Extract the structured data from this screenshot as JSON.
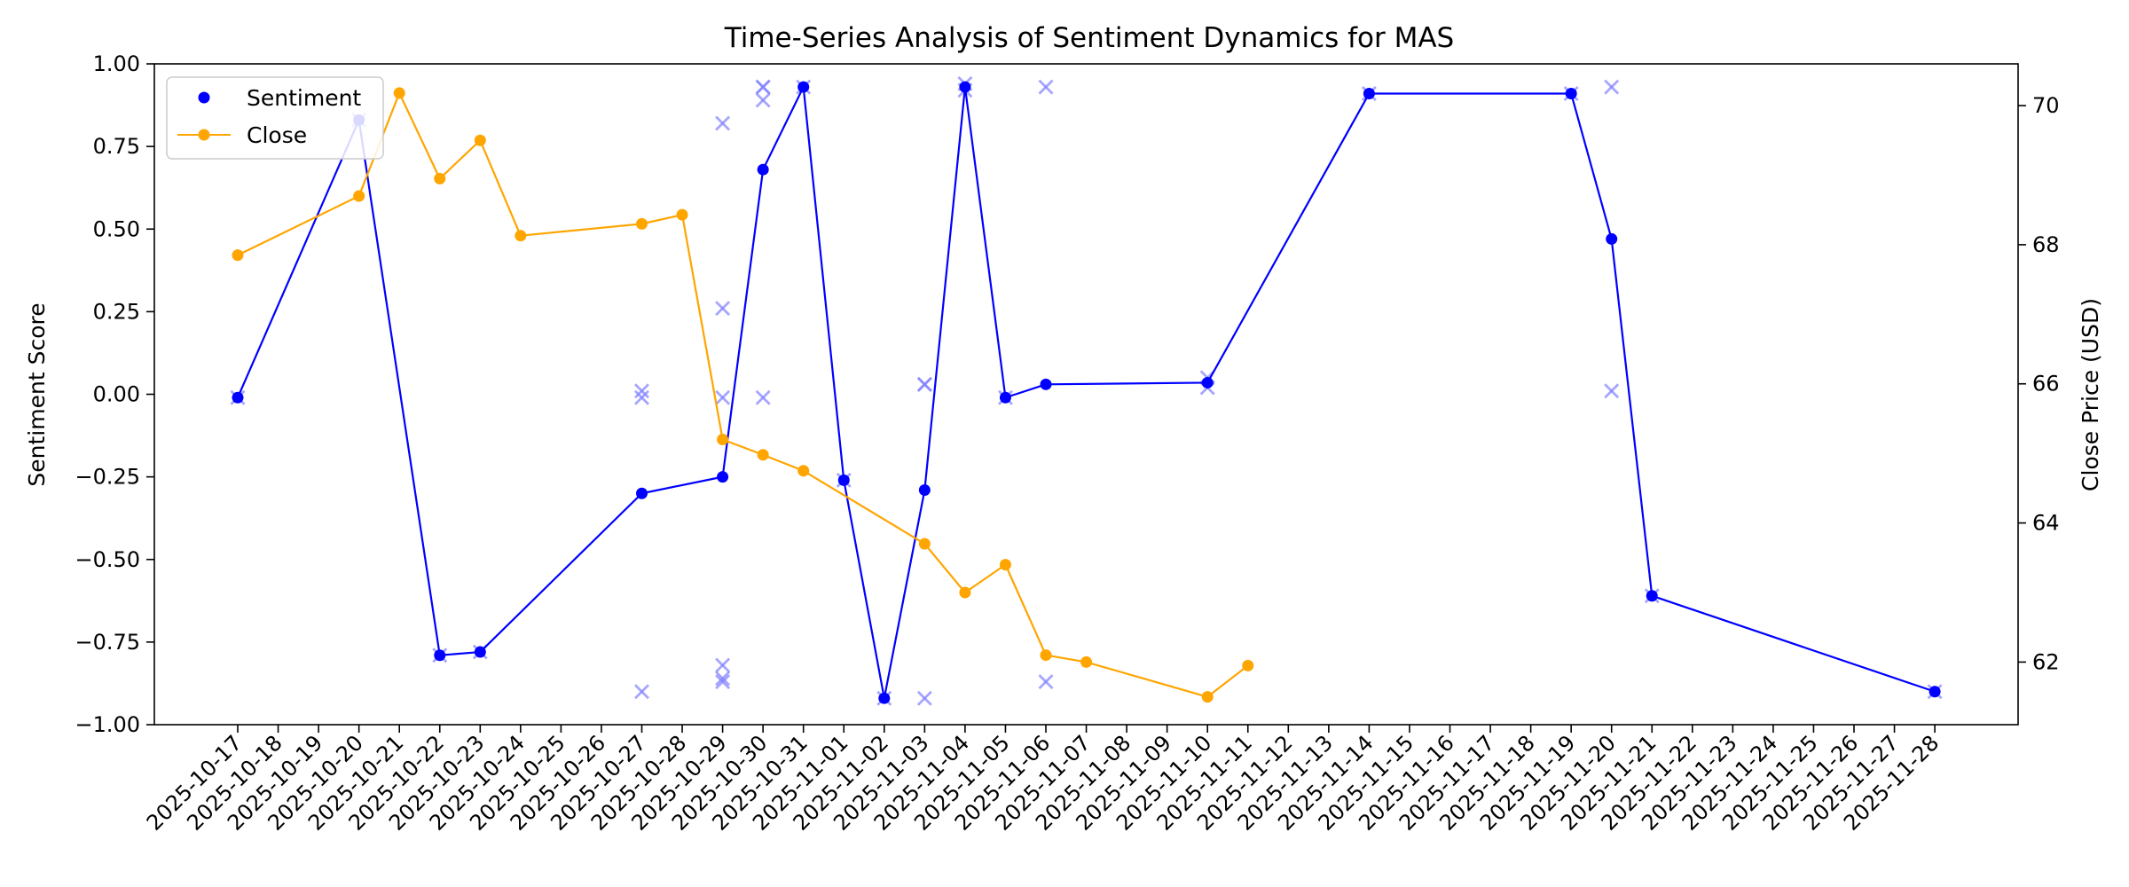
{
  "chart_data": {
    "type": "line",
    "title": "Time-Series Analysis of Sentiment Dynamics for MAS",
    "ylabel_left": "Sentiment Score",
    "ylabel_right": "Close Price (USD)",
    "ylim_left": [
      -1.0,
      1.0
    ],
    "ylim_right": [
      61.1,
      70.6
    ],
    "grid": false,
    "legend_position": "top-left",
    "x_categories": [
      "2025-10-17",
      "2025-10-18",
      "2025-10-19",
      "2025-10-20",
      "2025-10-21",
      "2025-10-22",
      "2025-10-23",
      "2025-10-24",
      "2025-10-25",
      "2025-10-26",
      "2025-10-27",
      "2025-10-28",
      "2025-10-29",
      "2025-10-30",
      "2025-10-31",
      "2025-11-01",
      "2025-11-02",
      "2025-11-03",
      "2025-11-04",
      "2025-11-05",
      "2025-11-06",
      "2025-11-07",
      "2025-11-08",
      "2025-11-09",
      "2025-11-10",
      "2025-11-11",
      "2025-11-12",
      "2025-11-13",
      "2025-11-14",
      "2025-11-15",
      "2025-11-16",
      "2025-11-17",
      "2025-11-18",
      "2025-11-19",
      "2025-11-20",
      "2025-11-21",
      "2025-11-22",
      "2025-11-23",
      "2025-11-24",
      "2025-11-25",
      "2025-11-26",
      "2025-11-27",
      "2025-11-28"
    ],
    "y_ticks_left": [
      "−1.00",
      "−0.75",
      "−0.50",
      "−0.25",
      "0.00",
      "0.25",
      "0.50",
      "0.75",
      "1.00"
    ],
    "y_tick_values_left": [
      -1.0,
      -0.75,
      -0.5,
      -0.25,
      0.0,
      0.25,
      0.5,
      0.75,
      1.0
    ],
    "y_ticks_right": [
      "62",
      "64",
      "66",
      "68",
      "70"
    ],
    "y_tick_values_right": [
      62,
      64,
      66,
      68,
      70
    ],
    "series": [
      {
        "name": "Sentiment",
        "axis": "left",
        "color": "#0000ff",
        "style": "line-with-dots",
        "points": [
          [
            "2025-10-17",
            -0.01
          ],
          [
            "2025-10-20",
            0.83
          ],
          [
            "2025-10-22",
            -0.79
          ],
          [
            "2025-10-23",
            -0.78
          ],
          [
            "2025-10-27",
            -0.3
          ],
          [
            "2025-10-29",
            -0.25
          ],
          [
            "2025-10-30",
            0.68
          ],
          [
            "2025-10-31",
            0.93
          ],
          [
            "2025-11-01",
            -0.26
          ],
          [
            "2025-11-02",
            -0.92
          ],
          [
            "2025-11-03",
            -0.29
          ],
          [
            "2025-11-04",
            0.93
          ],
          [
            "2025-11-05",
            -0.01
          ],
          [
            "2025-11-06",
            0.03
          ],
          [
            "2025-11-10",
            0.035
          ],
          [
            "2025-11-14",
            0.91
          ],
          [
            "2025-11-19",
            0.91
          ],
          [
            "2025-11-20",
            0.47
          ],
          [
            "2025-11-21",
            -0.61
          ],
          [
            "2025-11-28",
            -0.9
          ]
        ]
      },
      {
        "name": "Close",
        "axis": "right",
        "color": "#ffa500",
        "style": "line-with-dots",
        "points": [
          [
            "2025-10-17",
            67.85
          ],
          [
            "2025-10-20",
            68.7
          ],
          [
            "2025-10-21",
            70.18
          ],
          [
            "2025-10-22",
            68.95
          ],
          [
            "2025-10-23",
            69.5
          ],
          [
            "2025-10-24",
            68.13
          ],
          [
            "2025-10-27",
            68.3
          ],
          [
            "2025-10-28",
            68.43
          ],
          [
            "2025-10-29",
            65.2
          ],
          [
            "2025-10-30",
            64.98
          ],
          [
            "2025-10-31",
            64.75
          ],
          [
            "2025-11-03",
            63.7
          ],
          [
            "2025-11-04",
            63.0
          ],
          [
            "2025-11-05",
            63.4
          ],
          [
            "2025-11-06",
            62.1
          ],
          [
            "2025-11-07",
            62.0
          ],
          [
            "2025-11-10",
            61.5
          ],
          [
            "2025-11-11",
            61.95
          ]
        ]
      },
      {
        "name": "",
        "axis": "left",
        "color": "#8080ff",
        "style": "x-markers",
        "points": [
          [
            "2025-10-17",
            -0.01
          ],
          [
            "2025-10-20",
            0.83
          ],
          [
            "2025-10-22",
            -0.79
          ],
          [
            "2025-10-23",
            -0.78
          ],
          [
            "2025-10-27",
            0.01
          ],
          [
            "2025-10-27",
            -0.01
          ],
          [
            "2025-10-27",
            -0.9
          ],
          [
            "2025-10-29",
            0.82
          ],
          [
            "2025-10-29",
            0.26
          ],
          [
            "2025-10-29",
            -0.01
          ],
          [
            "2025-10-29",
            -0.82
          ],
          [
            "2025-10-29",
            -0.86
          ],
          [
            "2025-10-29",
            -0.87
          ],
          [
            "2025-10-30",
            0.93
          ],
          [
            "2025-10-30",
            0.93
          ],
          [
            "2025-10-30",
            0.89
          ],
          [
            "2025-10-30",
            -0.01
          ],
          [
            "2025-10-31",
            0.93
          ],
          [
            "2025-11-01",
            -0.26
          ],
          [
            "2025-11-02",
            -0.92
          ],
          [
            "2025-11-03",
            0.03
          ],
          [
            "2025-11-03",
            0.03
          ],
          [
            "2025-11-03",
            -0.92
          ],
          [
            "2025-11-04",
            0.94
          ],
          [
            "2025-11-04",
            0.92
          ],
          [
            "2025-11-05",
            -0.01
          ],
          [
            "2025-11-06",
            0.93
          ],
          [
            "2025-11-06",
            -0.87
          ],
          [
            "2025-11-10",
            0.05
          ],
          [
            "2025-11-10",
            0.02
          ],
          [
            "2025-11-14",
            0.91
          ],
          [
            "2025-11-19",
            0.91
          ],
          [
            "2025-11-20",
            0.93
          ],
          [
            "2025-11-20",
            0.01
          ],
          [
            "2025-11-21",
            -0.61
          ],
          [
            "2025-11-28",
            -0.9
          ]
        ]
      }
    ],
    "legend": [
      {
        "label": "Sentiment",
        "color": "#0000ff",
        "marker": "dot"
      },
      {
        "label": "Close",
        "color": "#ffa500",
        "marker": "line-dot"
      }
    ]
  }
}
